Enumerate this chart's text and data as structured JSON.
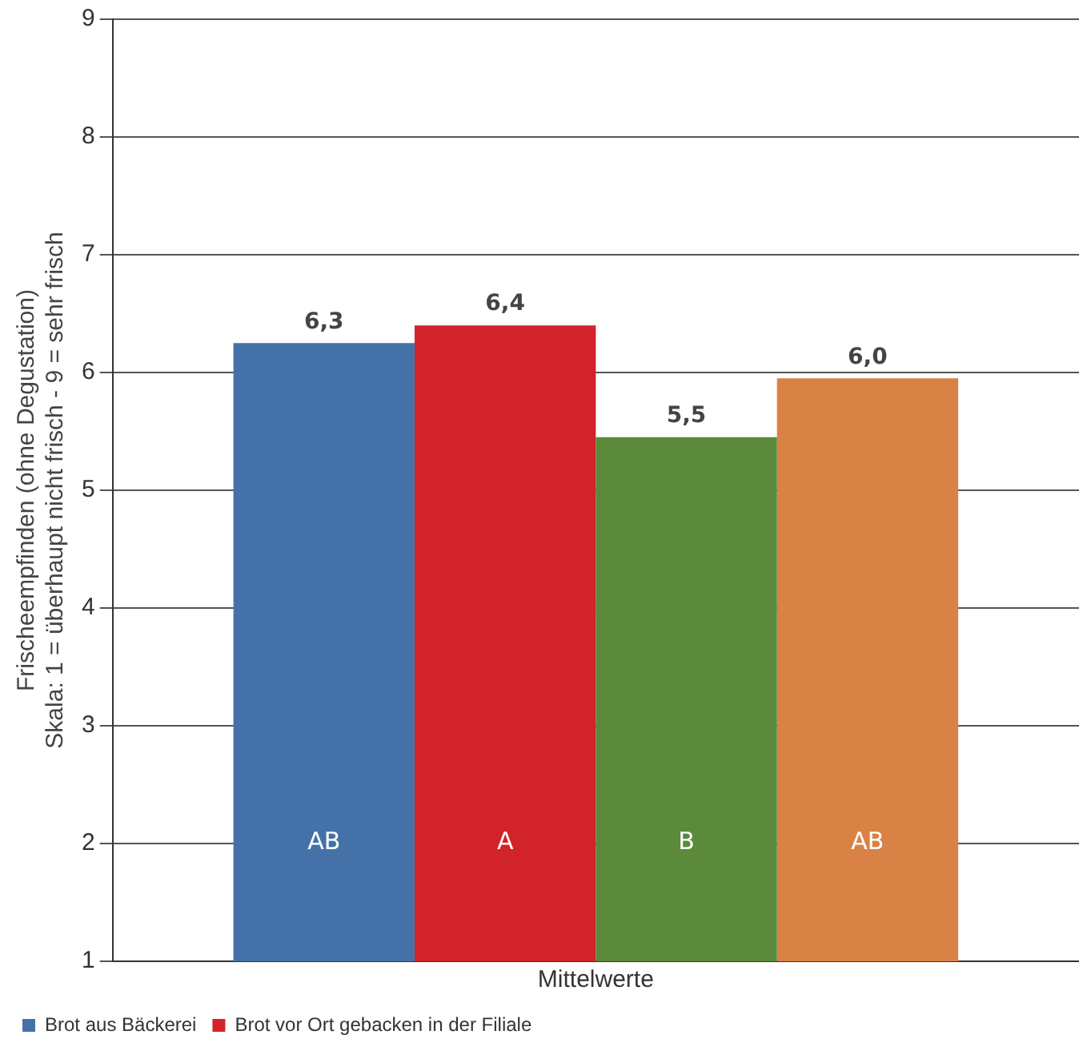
{
  "chart_data": {
    "type": "bar",
    "ylabel": "Frischeempfinden (ohne Degustation)\nSkala: 1 = überhaupt nicht frisch - 9 = sehr frisch",
    "categories": [
      "Mittelwerte"
    ],
    "series": [
      {
        "name": "Brot aus Bäckerei",
        "color": "#4472a8",
        "values": [
          6.25
        ],
        "value_labels": [
          "6,3"
        ]
      },
      {
        "name": "Brot vor Ort gebacken in der Filiale",
        "color": "#d2232a",
        "values": [
          6.4
        ],
        "value_labels": [
          "6,4"
        ]
      },
      {
        "color": "#5a8a3a",
        "values": [
          5.45
        ],
        "value_labels": [
          "5,5"
        ]
      },
      {
        "color": "#d98245",
        "values": [
          5.95
        ],
        "value_labels": [
          "6,0"
        ]
      }
    ],
    "annotations": [
      "AB",
      "A",
      "B",
      "AB"
    ],
    "ylim": [
      1,
      9
    ],
    "yticks": [
      1,
      2,
      3,
      4,
      5,
      6,
      7,
      8,
      9
    ],
    "grid": "y",
    "legend": "bottom"
  }
}
